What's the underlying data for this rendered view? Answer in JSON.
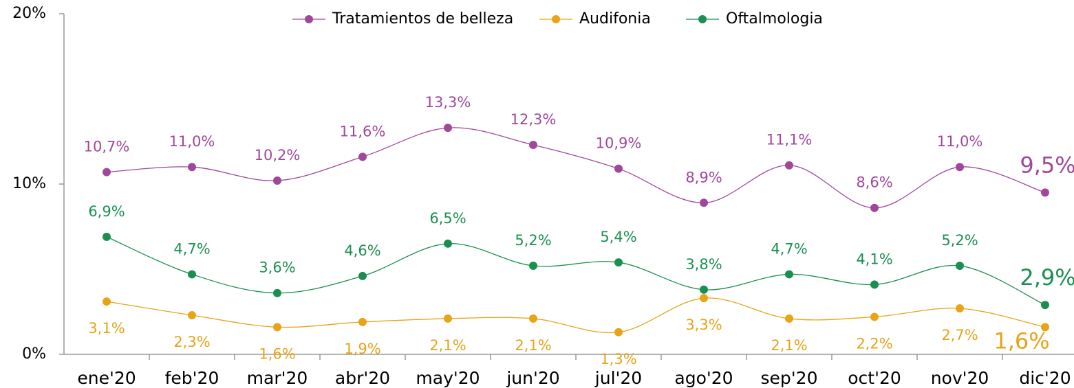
{
  "chart_data": {
    "type": "line",
    "categories": [
      "ene'20",
      "feb'20",
      "mar'20",
      "abr'20",
      "may'20",
      "jun'20",
      "jul'20",
      "ago'20",
      "sep'20",
      "oct'20",
      "nov'20",
      "dic'20"
    ],
    "series": [
      {
        "name": "Tratamientos de belleza",
        "color": "#a0479a",
        "values": [
          10.7,
          11.0,
          10.2,
          11.6,
          13.3,
          12.3,
          10.9,
          8.9,
          11.1,
          8.6,
          11.0,
          9.5
        ],
        "value_labels": [
          "10,7%",
          "11,0%",
          "10,2%",
          "11,6%",
          "13,3%",
          "12,3%",
          "10,9%",
          "8,9%",
          "11,1%",
          "8,6%",
          "11,0%",
          "9,5%"
        ]
      },
      {
        "name": "Audifonia",
        "color": "#e8a317",
        "values": [
          3.1,
          2.3,
          1.6,
          1.9,
          2.1,
          2.1,
          1.3,
          3.3,
          2.1,
          2.2,
          2.7,
          1.6
        ],
        "value_labels": [
          "3,1%",
          "2,3%",
          "1,6%",
          "1,9%",
          "2,1%",
          "2,1%",
          "1,3%",
          "3,3%",
          "2,1%",
          "2,2%",
          "2,7%",
          "1,6%"
        ]
      },
      {
        "name": "Oftalmologia",
        "color": "#1a9050",
        "values": [
          6.9,
          4.7,
          3.6,
          4.6,
          6.5,
          5.2,
          5.4,
          3.8,
          4.7,
          4.1,
          5.2,
          2.9
        ],
        "value_labels": [
          "6,9%",
          "4,7%",
          "3,6%",
          "4,6%",
          "6,5%",
          "5,2%",
          "5,4%",
          "3,8%",
          "4,7%",
          "4,1%",
          "5,2%",
          "2,9%"
        ]
      }
    ],
    "ylim": [
      0,
      20
    ],
    "yticks": [
      {
        "value": 0,
        "label": "0%"
      },
      {
        "value": 10,
        "label": "10%"
      },
      {
        "value": 20,
        "label": "20%"
      }
    ],
    "legend": "top"
  }
}
